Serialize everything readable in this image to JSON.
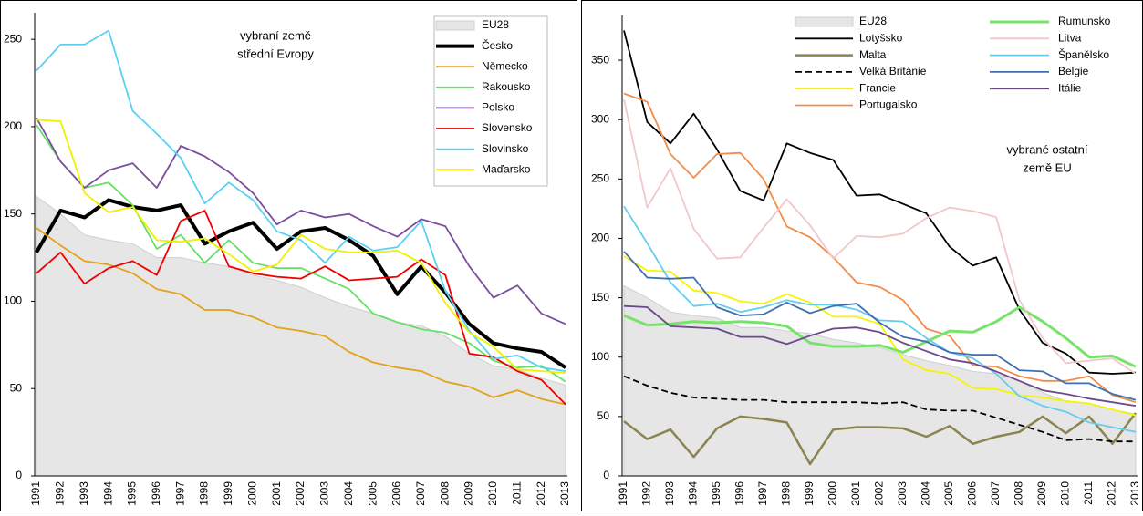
{
  "chart_data": [
    {
      "type": "line",
      "annotation": [
        "vybraní země",
        "střední Evropy"
      ],
      "categories": [
        "1991",
        "1992",
        "1993",
        "1994",
        "1995",
        "1996",
        "1997",
        "1998",
        "1999",
        "2000",
        "2001",
        "2002",
        "2003",
        "2004",
        "2005",
        "2006",
        "2007",
        "2008",
        "2009",
        "2010",
        "2011",
        "2012",
        "2013"
      ],
      "ylim": [
        0,
        260
      ],
      "yticks": [
        0,
        50,
        100,
        150,
        200,
        250
      ],
      "series": [
        {
          "name": "EU28",
          "color": "#e6e6e6",
          "style": "area",
          "values": [
            160,
            150,
            138,
            135,
            133,
            125,
            125,
            122,
            120,
            115,
            112,
            108,
            102,
            97,
            93,
            88,
            86,
            80,
            70,
            63,
            61,
            56,
            52
          ]
        },
        {
          "name": "Česko",
          "color": "#000000",
          "width": 4,
          "values": [
            128,
            152,
            148,
            158,
            154,
            152,
            155,
            133,
            140,
            145,
            130,
            140,
            142,
            135,
            126,
            104,
            120,
            105,
            87,
            76,
            73,
            71,
            62
          ]
        },
        {
          "name": "Německo",
          "color": "#e3a21a",
          "values": [
            142,
            132,
            123,
            121,
            116,
            107,
            104,
            95,
            95,
            91,
            85,
            83,
            80,
            71,
            65,
            62,
            60,
            54,
            51,
            45,
            49,
            44,
            41
          ]
        },
        {
          "name": "Rakousko",
          "color": "#66e066",
          "values": [
            201,
            180,
            165,
            168,
            155,
            130,
            138,
            122,
            135,
            122,
            119,
            119,
            113,
            107,
            93,
            88,
            84,
            82,
            76,
            66,
            62,
            63,
            54
          ]
        },
        {
          "name": "Polsko",
          "color": "#7b4f9e",
          "values": [
            205,
            180,
            165,
            175,
            179,
            165,
            189,
            183,
            174,
            162,
            144,
            152,
            148,
            150,
            143,
            137,
            147,
            143,
            120,
            102,
            109,
            93,
            87
          ]
        },
        {
          "name": "Slovensko",
          "color": "#ee0000",
          "values": [
            116,
            128,
            110,
            119,
            123,
            115,
            146,
            152,
            120,
            116,
            114,
            113,
            120,
            112,
            113,
            114,
            124,
            115,
            70,
            68,
            60,
            55,
            41
          ]
        },
        {
          "name": "Slovinsko",
          "color": "#5bd0f5",
          "values": [
            232,
            247,
            247,
            255,
            209,
            196,
            182,
            156,
            168,
            158,
            140,
            135,
            122,
            137,
            129,
            131,
            146,
            106,
            83,
            67,
            69,
            62,
            60
          ]
        },
        {
          "name": "Maďarsko",
          "color": "#f0f000",
          "values": [
            204,
            203,
            162,
            151,
            154,
            135,
            134,
            136,
            127,
            117,
            121,
            138,
            130,
            128,
            128,
            129,
            122,
            99,
            82,
            74,
            61,
            60,
            59
          ]
        }
      ]
    },
    {
      "type": "line",
      "annotation": [
        "vybrané ostatní",
        "země EU"
      ],
      "categories": [
        "1991",
        "1992",
        "1993",
        "1994",
        "1995",
        "1996",
        "1997",
        "1998",
        "1999",
        "2000",
        "2001",
        "2002",
        "2003",
        "2004",
        "2005",
        "2006",
        "2007",
        "2008",
        "2009",
        "2010",
        "2011",
        "2012",
        "2013"
      ],
      "ylim": [
        0,
        380
      ],
      "yticks": [
        0,
        50,
        100,
        150,
        200,
        250,
        300,
        350
      ],
      "series": [
        {
          "name": "EU28",
          "color": "#e6e6e6",
          "style": "area",
          "values": [
            160,
            150,
            138,
            135,
            133,
            125,
            125,
            122,
            120,
            115,
            112,
            108,
            102,
            97,
            93,
            88,
            86,
            80,
            70,
            63,
            61,
            56,
            52
          ]
        },
        {
          "name": "Lotyšsko",
          "color": "#000000",
          "values": [
            375,
            298,
            280,
            305,
            275,
            240,
            232,
            280,
            272,
            266,
            236,
            237,
            229,
            221,
            193,
            177,
            184,
            140,
            112,
            103,
            87,
            86,
            87
          ]
        },
        {
          "name": "Malta",
          "color": "#8a8450",
          "width": 2.5,
          "values": [
            46,
            31,
            39,
            16,
            40,
            50,
            48,
            45,
            10,
            39,
            41,
            41,
            40,
            33,
            42,
            27,
            33,
            37,
            50,
            36,
            50,
            27,
            53
          ]
        },
        {
          "name": "Velká Británie",
          "color": "#000000",
          "style": "dashed",
          "values": [
            84,
            76,
            70,
            66,
            65,
            64,
            64,
            62,
            62,
            62,
            62,
            61,
            62,
            56,
            55,
            55,
            49,
            43,
            37,
            30,
            31,
            29,
            29
          ]
        },
        {
          "name": "Francie",
          "color": "#f5f500",
          "values": [
            185,
            173,
            172,
            156,
            154,
            147,
            145,
            153,
            146,
            134,
            134,
            128,
            98,
            89,
            86,
            74,
            73,
            68,
            66,
            63,
            61,
            56,
            51
          ]
        },
        {
          "name": "Portugalsko",
          "color": "#f28c4a",
          "values": [
            322,
            315,
            271,
            251,
            271,
            272,
            250,
            210,
            201,
            184,
            163,
            159,
            148,
            124,
            118,
            93,
            92,
            84,
            80,
            80,
            84,
            68,
            62
          ]
        },
        {
          "name": "Rumunsko",
          "color": "#77e36a",
          "width": 3,
          "values": [
            135,
            127,
            128,
            130,
            129,
            130,
            129,
            126,
            112,
            109,
            109,
            110,
            104,
            113,
            122,
            121,
            130,
            142,
            130,
            116,
            100,
            101,
            92
          ]
        },
        {
          "name": "Litva",
          "color": "#f0c8c8",
          "values": [
            317,
            226,
            259,
            208,
            183,
            184,
            209,
            233,
            211,
            183,
            202,
            201,
            204,
            217,
            226,
            223,
            218,
            148,
            116,
            95,
            97,
            99,
            86
          ]
        },
        {
          "name": "Španělsko",
          "color": "#66ccee",
          "values": [
            227,
            196,
            163,
            143,
            145,
            138,
            142,
            148,
            144,
            144,
            140,
            131,
            130,
            116,
            104,
            99,
            86,
            67,
            59,
            54,
            45,
            41,
            37
          ]
        },
        {
          "name": "Belgie",
          "color": "#3f6fb0",
          "values": [
            189,
            167,
            166,
            167,
            142,
            135,
            136,
            146,
            137,
            143,
            145,
            129,
            117,
            113,
            104,
            102,
            102,
            89,
            88,
            78,
            78,
            69,
            64
          ]
        },
        {
          "name": "Itálie",
          "color": "#6a4a8a",
          "values": [
            143,
            142,
            126,
            125,
            124,
            117,
            117,
            111,
            118,
            124,
            125,
            121,
            112,
            105,
            98,
            95,
            88,
            80,
            72,
            69,
            65,
            62,
            59
          ]
        }
      ]
    }
  ]
}
